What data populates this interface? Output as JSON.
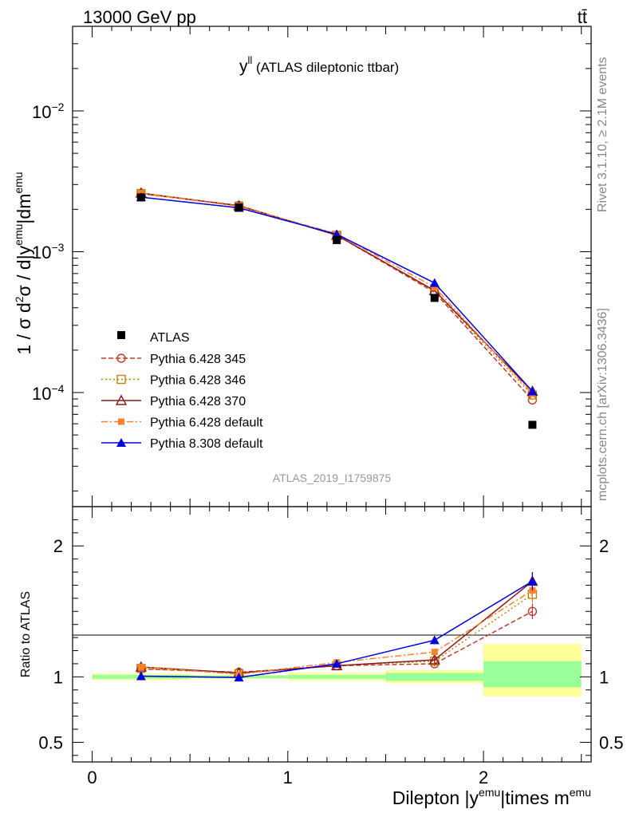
{
  "header": {
    "energy_label": "13000 GeV pp",
    "process_label": "tt̄"
  },
  "side": {
    "rivet_label": "Rivet 3.1.10, ≥ 2.1M events",
    "mcplots_label": "mcplots.cern.ch [arXiv:1306.3436]"
  },
  "chart_data": [
    {
      "type": "line",
      "title": "y",
      "title_superscript": "ll",
      "subtitle": "(ATLAS dileptonic ttbar)",
      "analysis_label": "ATLAS_2019_I1759875",
      "ylabel": "1 / σ  d²σ / d|y^emu|dm^emu",
      "yscale": "log",
      "ylim": [
        1.6e-05,
        0.04
      ],
      "xlim": [
        -0.1,
        2.55
      ],
      "y_tick_labels": [
        "10⁻⁴",
        "10⁻³",
        "10⁻²"
      ],
      "x": [
        0.25,
        0.75,
        1.25,
        1.75,
        2.25
      ],
      "reference": {
        "name": "ATLAS",
        "color": "#000000",
        "values": [
          0.00243,
          0.00206,
          0.00121,
          0.00047,
          5.9e-05
        ]
      },
      "series": [
        {
          "name": "Pythia 6.428 345",
          "color": "#c0392b",
          "marker": "circle-open",
          "dash": "6,3",
          "values": [
            0.00258,
            0.00213,
            0.00131,
            0.000515,
            8.85e-05
          ]
        },
        {
          "name": "Pythia 6.428 346",
          "color": "#b8860b",
          "marker": "square-open",
          "dash": "2,3",
          "values": [
            0.00259,
            0.00211,
            0.00131,
            0.000525,
            9.6e-05
          ]
        },
        {
          "name": "Pythia 6.428 370",
          "color": "#8b1a1a",
          "marker": "triangle-open",
          "dash": "",
          "values": [
            0.00261,
            0.00212,
            0.00131,
            0.00053,
            0.000102
          ]
        },
        {
          "name": "Pythia 6.428 default",
          "color": "#ff7f2a",
          "marker": "square-filled",
          "dash": "8,3,2,3",
          "values": [
            0.00261,
            0.0021,
            0.00134,
            0.00056,
            9.8e-05
          ]
        },
        {
          "name": "Pythia 8.308 default",
          "color": "#0000dd",
          "marker": "triangle-filled",
          "dash": "",
          "values": [
            0.00244,
            0.00205,
            0.00133,
            0.0006,
            0.000102
          ]
        }
      ]
    },
    {
      "type": "line",
      "ylabel": "Ratio to ATLAS",
      "xlabel": "Dilepton |y^emu|times m^emu",
      "ylim": [
        0.35,
        2.3
      ],
      "xlim": [
        -0.1,
        2.55
      ],
      "y_ticks": [
        0.5,
        1,
        2
      ],
      "y_tick_labels": [
        "0.5",
        "1",
        "2"
      ],
      "x_ticks": [
        0,
        1,
        2
      ],
      "x_tick_labels": [
        "0",
        "1",
        "2"
      ],
      "x": [
        0.25,
        0.75,
        1.25,
        1.75,
        2.25
      ],
      "uncertainty_bands": [
        {
          "x0": 0.0,
          "x1": 0.5,
          "inner": [
            0.985,
            1.015
          ],
          "outer": [
            0.975,
            1.025
          ]
        },
        {
          "x0": 0.5,
          "x1": 1.0,
          "inner": [
            0.99,
            1.01
          ],
          "outer": [
            0.985,
            1.015
          ]
        },
        {
          "x0": 1.0,
          "x1": 1.5,
          "inner": [
            0.985,
            1.015
          ],
          "outer": [
            0.97,
            1.03
          ]
        },
        {
          "x0": 1.5,
          "x1": 2.0,
          "inner": [
            0.97,
            1.03
          ],
          "outer": [
            0.95,
            1.05
          ]
        },
        {
          "x0": 2.0,
          "x1": 2.5,
          "inner": [
            0.92,
            1.12
          ],
          "outer": [
            0.85,
            1.25
          ]
        }
      ],
      "series": [
        {
          "name": "Pythia 6.428 345",
          "values": [
            1.06,
            1.035,
            1.085,
            1.1,
            1.5
          ],
          "err": [
            0.01,
            0.01,
            0.01,
            0.02,
            0.06
          ]
        },
        {
          "name": "Pythia 6.428 346",
          "values": [
            1.065,
            1.025,
            1.085,
            1.12,
            1.63
          ],
          "err": [
            0.01,
            0.01,
            0.01,
            0.02,
            0.06
          ]
        },
        {
          "name": "Pythia 6.428 370",
          "values": [
            1.075,
            1.03,
            1.085,
            1.13,
            1.73
          ],
          "err": [
            0.01,
            0.01,
            0.01,
            0.02,
            0.07
          ]
        },
        {
          "name": "Pythia 6.428 default",
          "values": [
            1.075,
            1.02,
            1.11,
            1.19,
            1.66
          ],
          "err": [
            0.01,
            0.01,
            0.01,
            0.02,
            0.06
          ]
        },
        {
          "name": "Pythia 8.308 default",
          "values": [
            1.005,
            0.995,
            1.1,
            1.28,
            1.73
          ],
          "err": [
            0.01,
            0.01,
            0.01,
            0.03,
            0.07
          ]
        }
      ]
    }
  ]
}
